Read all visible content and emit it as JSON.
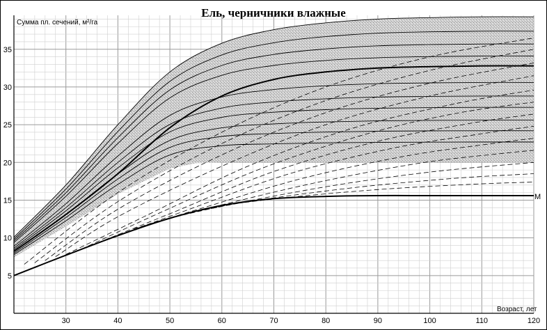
{
  "chart_data": {
    "type": "line",
    "title": "Ель, черничники влажные",
    "ylabel": "Сумма пл. сечений, м²/га",
    "xlabel": "Возраст, лет",
    "xlim": [
      20,
      120
    ],
    "ylim": [
      0,
      39.5
    ],
    "xticks": [
      30,
      40,
      50,
      60,
      70,
      80,
      90,
      100,
      110,
      120
    ],
    "yticks": [
      5,
      10,
      15,
      20,
      25,
      30,
      35
    ],
    "grid": true,
    "band": {
      "name": "shaded-zone",
      "upper": [
        [
          20,
          10.1
        ],
        [
          30,
          17
        ],
        [
          40,
          25
        ],
        [
          50,
          32
        ],
        [
          60,
          35.8
        ],
        [
          70,
          37.6
        ],
        [
          80,
          38.5
        ],
        [
          90,
          39
        ],
        [
          100,
          39.2
        ],
        [
          110,
          39.3
        ],
        [
          120,
          39.3
        ]
      ],
      "lower_curve": [
        [
          20,
          7.4
        ],
        [
          30,
          11.5
        ],
        [
          40,
          15.8
        ],
        [
          50,
          19.2
        ],
        [
          55,
          19.9
        ],
        [
          60,
          20
        ],
        [
          120,
          20
        ]
      ]
    },
    "bold_curves": [
      {
        "name": "upper-bold",
        "points": [
          [
            20,
            8.2
          ],
          [
            30,
            13.1
          ],
          [
            40,
            18.5
          ],
          [
            50,
            24.6
          ],
          [
            60,
            28.8
          ],
          [
            70,
            31
          ],
          [
            80,
            32
          ],
          [
            90,
            32.5
          ],
          [
            100,
            32.7
          ],
          [
            110,
            32.8
          ],
          [
            120,
            32.8
          ]
        ]
      },
      {
        "name": "M",
        "label": "М",
        "points": [
          [
            20,
            5
          ],
          [
            30,
            7.7
          ],
          [
            40,
            10.3
          ],
          [
            50,
            12.6
          ],
          [
            60,
            14.3
          ],
          [
            70,
            15.2
          ],
          [
            80,
            15.5
          ],
          [
            90,
            15.6
          ],
          [
            100,
            15.6
          ],
          [
            110,
            15.6
          ],
          [
            120,
            15.6
          ]
        ]
      }
    ],
    "solid_curves_y120": [
      39.3,
      37.4,
      35.7,
      34.1,
      30.6,
      28.8,
      27.3,
      25.6,
      24.2,
      22.7
    ],
    "dashed_curves": [
      [
        [
          22,
          6.5
        ],
        [
          40,
          16
        ],
        [
          60,
          24
        ],
        [
          80,
          30
        ],
        [
          100,
          34
        ],
        [
          120,
          36.5
        ]
      ],
      [
        [
          24,
          6.7
        ],
        [
          40,
          14.8
        ],
        [
          60,
          22.5
        ],
        [
          80,
          28.2
        ],
        [
          100,
          32.2
        ],
        [
          120,
          35
        ]
      ],
      [
        [
          26,
          7
        ],
        [
          40,
          13.8
        ],
        [
          60,
          21
        ],
        [
          80,
          26.6
        ],
        [
          100,
          30.5
        ],
        [
          120,
          33.2
        ]
      ],
      [
        [
          28,
          7.5
        ],
        [
          40,
          12.8
        ],
        [
          60,
          19.5
        ],
        [
          80,
          25
        ],
        [
          100,
          28.8
        ],
        [
          120,
          31.5
        ]
      ],
      [
        [
          30,
          7.8
        ],
        [
          45,
          12.8
        ],
        [
          65,
          19.5
        ],
        [
          85,
          24.5
        ],
        [
          105,
          27.8
        ],
        [
          120,
          29.6
        ]
      ],
      [
        [
          33,
          8.5
        ],
        [
          48,
          13.3
        ],
        [
          68,
          19.3
        ],
        [
          88,
          23.8
        ],
        [
          105,
          26.5
        ],
        [
          120,
          28
        ]
      ],
      [
        [
          36,
          9.3
        ],
        [
          50,
          13.2
        ],
        [
          70,
          18.8
        ],
        [
          90,
          22.8
        ],
        [
          108,
          25.2
        ],
        [
          120,
          26.4
        ]
      ],
      [
        [
          40,
          10.3
        ],
        [
          53,
          13.6
        ],
        [
          73,
          18.5
        ],
        [
          93,
          21.9
        ],
        [
          110,
          23.8
        ],
        [
          120,
          24.8
        ]
      ],
      [
        [
          43,
          11.2
        ],
        [
          56,
          13.9
        ],
        [
          75,
          17.8
        ],
        [
          95,
          20.8
        ],
        [
          112,
          22.5
        ],
        [
          120,
          23.2
        ]
      ],
      [
        [
          47,
          12
        ],
        [
          59,
          14.2
        ],
        [
          78,
          17.3
        ],
        [
          98,
          19.9
        ],
        [
          114,
          21.2
        ],
        [
          120,
          21.6
        ]
      ],
      [
        [
          51,
          12.8
        ],
        [
          63,
          14.6
        ],
        [
          82,
          17
        ],
        [
          101,
          18.8
        ],
        [
          120,
          20
        ]
      ],
      [
        [
          55,
          13.5
        ],
        [
          67,
          15
        ],
        [
          86,
          16.7
        ],
        [
          105,
          17.9
        ],
        [
          120,
          18.5
        ]
      ],
      [
        [
          60,
          14.3
        ],
        [
          72,
          15.3
        ],
        [
          90,
          16.4
        ],
        [
          108,
          17.1
        ],
        [
          120,
          17.4
        ]
      ]
    ]
  }
}
